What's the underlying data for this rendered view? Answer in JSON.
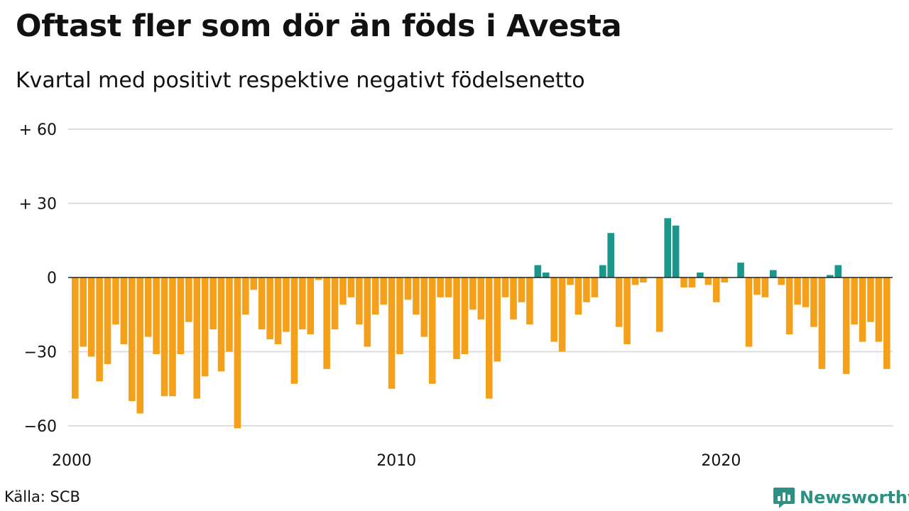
{
  "title": "Oftast fler som dör än föds i Avesta",
  "subtitle": "Kvartal med positivt respektive negativt födelsenetto",
  "source": "Källa: SCB",
  "brand": "Newsworthy",
  "colors": {
    "positive": "#1a968a",
    "negative": "#f5a01b",
    "grid": "#dddddd",
    "zero_line": "#222222",
    "brand": "#2e8f83"
  },
  "chart_data": {
    "type": "bar",
    "x_start": "2000 Q1",
    "x_unit": "quarter",
    "ylim": [
      -65,
      60
    ],
    "y_ticks": [
      {
        "value": 60,
        "label": "+ 60"
      },
      {
        "value": 30,
        "label": "+ 30"
      },
      {
        "value": 0,
        "label": "0"
      },
      {
        "value": -30,
        "label": "−30"
      },
      {
        "value": -60,
        "label": "−60"
      }
    ],
    "x_ticks": [
      {
        "label": "2000",
        "index": 0
      },
      {
        "label": "2010",
        "index": 40
      },
      {
        "label": "2020",
        "index": 80
      }
    ],
    "grid": true,
    "values": [
      -49,
      -28,
      -32,
      -42,
      -35,
      -19,
      -27,
      -50,
      -55,
      -24,
      -31,
      -48,
      -48,
      -31,
      -18,
      -49,
      -40,
      -21,
      -38,
      -30,
      -61,
      -15,
      -5,
      -21,
      -25,
      -27,
      -22,
      -43,
      -21,
      -23,
      -1,
      -37,
      -21,
      -11,
      -8,
      -19,
      -28,
      -15,
      -11,
      -45,
      -31,
      -9,
      -15,
      -24,
      -43,
      -8,
      -8,
      -33,
      -31,
      -13,
      -17,
      -49,
      -34,
      -8,
      -17,
      -10,
      -19,
      5,
      2,
      -26,
      -30,
      -3,
      -15,
      -10,
      -8,
      5,
      18,
      -20,
      -27,
      -3,
      -2,
      0,
      -22,
      24,
      21,
      -4,
      -4,
      2,
      -3,
      -10,
      -2,
      0,
      6,
      -28,
      -7,
      -8,
      3,
      -3,
      -23,
      -11,
      -12,
      -20,
      -37,
      1,
      5,
      -39,
      -19,
      -26,
      -18,
      -26,
      -37
    ]
  }
}
